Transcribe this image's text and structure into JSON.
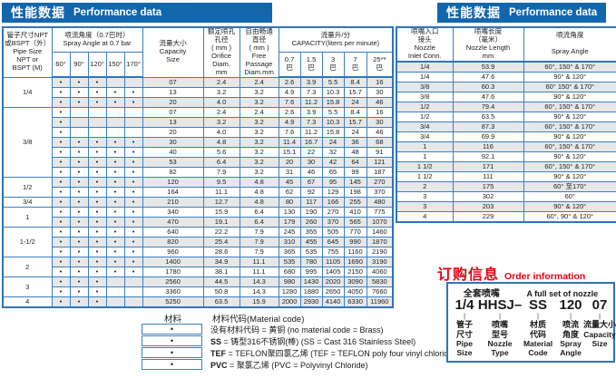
{
  "colors": {
    "title_bar": "#1266ab",
    "table_border": "#2e75b6",
    "grid_line": "#3c7fc0",
    "stripe": "#e7e7e7",
    "accent_red": "#e60012"
  },
  "left": {
    "title_zh": "性能数据",
    "title_en": "Performance data",
    "headers": {
      "pipe": "管子尺寸NPT\n或BSPT（外）\nPipe Size\nNPT or\nBSPT (M)",
      "angle_group": "喷流角度（0.7巴时）\nSpray Angle at 0.7 bar",
      "angles": [
        "60°",
        "90°",
        "120°",
        "150°",
        "170°"
      ],
      "size": "流量大小\nCapacity\nSize",
      "orifice": "额定喷孔\n孔径\n( mm )\nOrifice\nDiam.\nmm",
      "free": "自由畅通\n直径\n( mm )\nFree\nPassage\nDiam.mm",
      "cap_group": "流量升/分\nCAPACITY(liters per minute)",
      "pressures": [
        "0.7\n巴",
        "1.5\n巴",
        "3\n巴",
        "7\n巴",
        "25**\n巴"
      ]
    },
    "groups": [
      {
        "pipe": "1/4",
        "rows": [
          {
            "dots": [
              1,
              1,
              1,
              0,
              0
            ],
            "size": "07",
            "orifice": "2.4",
            "free": "2.4",
            "caps": [
              "2.6",
              "3.9",
              "5.5",
              "8.4",
              "16"
            ]
          },
          {
            "dots": [
              1,
              1,
              1,
              1,
              1
            ],
            "size": "13",
            "orifice": "3.2",
            "free": "3.2",
            "caps": [
              "4.9",
              "7.3",
              "10.3",
              "15.7",
              "30"
            ]
          },
          {
            "dots": [
              1,
              1,
              1,
              1,
              1
            ],
            "size": "20",
            "orifice": "4.0",
            "free": "3.2",
            "caps": [
              "7.6",
              "11.2",
              "15.8",
              "24",
              "46"
            ]
          }
        ]
      },
      {
        "pipe": "3/8",
        "rows": [
          {
            "dots": [
              1,
              0,
              0,
              0,
              0
            ],
            "size": "07",
            "orifice": "2.4",
            "free": "2.4",
            "caps": [
              "2.6",
              "3.9",
              "5.5",
              "8.4",
              "16"
            ]
          },
          {
            "dots": [
              1,
              0,
              0,
              0,
              0
            ],
            "size": "13",
            "orifice": "3.2",
            "free": "3.2",
            "caps": [
              "4.9",
              "7.3",
              "10.3",
              "15.7",
              "30"
            ]
          },
          {
            "dots": [
              1,
              0,
              0,
              0,
              0
            ],
            "size": "20",
            "orifice": "4.0",
            "free": "3.2",
            "caps": [
              "7.6",
              "11.2",
              "15.8",
              "24",
              "46"
            ]
          },
          {
            "dots": [
              1,
              1,
              1,
              1,
              1
            ],
            "size": "30",
            "orifice": "4.8",
            "free": "3.2",
            "caps": [
              "11.4",
              "16.7",
              "24",
              "36",
              "68"
            ]
          },
          {
            "dots": [
              1,
              1,
              1,
              1,
              1
            ],
            "size": "40",
            "orifice": "5.6",
            "free": "3.2",
            "caps": [
              "15.1",
              "22",
              "32",
              "48",
              "91"
            ]
          },
          {
            "dots": [
              1,
              1,
              1,
              1,
              1
            ],
            "size": "53",
            "orifice": "6.4",
            "free": "3.2",
            "caps": [
              "20",
              "30",
              "42",
              "64",
              "121"
            ]
          },
          {
            "dots": [
              1,
              1,
              1,
              1,
              1
            ],
            "size": "82",
            "orifice": "7.9",
            "free": "3.2",
            "caps": [
              "31",
              "46",
              "65",
              "99",
              "187"
            ]
          }
        ]
      },
      {
        "pipe": "1/2",
        "rows": [
          {
            "dots": [
              1,
              1,
              1,
              1,
              1
            ],
            "size": "120",
            "orifice": "9.5",
            "free": "4.8",
            "caps": [
              "45",
              "67",
              "95",
              "145",
              "270"
            ]
          },
          {
            "dots": [
              1,
              1,
              1,
              1,
              1
            ],
            "size": "164",
            "orifice": "11.1",
            "free": "4.8",
            "caps": [
              "62",
              "92",
              "129",
              "198",
              "370"
            ]
          }
        ]
      },
      {
        "pipe": "3/4",
        "rows": [
          {
            "dots": [
              1,
              1,
              1,
              1,
              1
            ],
            "size": "210",
            "orifice": "12.7",
            "free": "4.8",
            "caps": [
              "80",
              "117",
              "166",
              "255",
              "480"
            ]
          }
        ]
      },
      {
        "pipe": "1",
        "rows": [
          {
            "dots": [
              1,
              1,
              1,
              1,
              1
            ],
            "size": "340",
            "orifice": "15.9",
            "free": "6.4",
            "caps": [
              "130",
              "190",
              "270",
              "410",
              "775"
            ]
          },
          {
            "dots": [
              1,
              1,
              1,
              1,
              1
            ],
            "size": "470",
            "orifice": "19.1",
            "free": "6.4",
            "caps": [
              "179",
              "260",
              "370",
              "565",
              "1070"
            ]
          }
        ]
      },
      {
        "pipe": "1-1/2",
        "rows": [
          {
            "dots": [
              1,
              1,
              1,
              1,
              1
            ],
            "size": "640",
            "orifice": "22.2",
            "free": "7.9",
            "caps": [
              "245",
              "355",
              "505",
              "770",
              "1460"
            ]
          },
          {
            "dots": [
              1,
              1,
              1,
              1,
              1
            ],
            "size": "820",
            "orifice": "25.4",
            "free": "7.9",
            "caps": [
              "310",
              "455",
              "645",
              "990",
              "1870"
            ]
          },
          {
            "dots": [
              1,
              1,
              1,
              1,
              1
            ],
            "size": "960",
            "orifice": "28.6",
            "free": "7.9",
            "caps": [
              "365",
              "535",
              "755",
              "1160",
              "2190"
            ]
          }
        ]
      },
      {
        "pipe": "2",
        "rows": [
          {
            "dots": [
              1,
              1,
              1,
              1,
              1
            ],
            "size": "1400",
            "orifice": "34.9",
            "free": "11.1",
            "caps": [
              "535",
              "780",
              "1105",
              "1690",
              "3190"
            ]
          },
          {
            "dots": [
              1,
              1,
              1,
              1,
              1
            ],
            "size": "1780",
            "orifice": "38.1",
            "free": "11.1",
            "caps": [
              "680",
              "995",
              "1405",
              "2150",
              "4060"
            ]
          }
        ]
      },
      {
        "pipe": "3",
        "rows": [
          {
            "dots": [
              1,
              1,
              1,
              0,
              0
            ],
            "size": "2560",
            "orifice": "44.5",
            "free": "14.3",
            "caps": [
              "980",
              "1430",
              "2020",
              "3090",
              "5830"
            ]
          },
          {
            "dots": [
              1,
              1,
              1,
              0,
              0
            ],
            "size": "3360",
            "orifice": "50.8",
            "free": "14.3",
            "caps": [
              "1280",
              "1880",
              "2650",
              "4050",
              "7660"
            ]
          }
        ]
      },
      {
        "pipe": "4",
        "rows": [
          {
            "dots": [
              1,
              1,
              1,
              0,
              0
            ],
            "size": "5250",
            "orifice": "63.5",
            "free": "15.9",
            "caps": [
              "2000",
              "2930",
              "4140",
              "6330",
              "11960"
            ]
          }
        ]
      }
    ]
  },
  "material": {
    "col_label": "材料",
    "title": "材料代码(Material code)",
    "bullet": "•",
    "rows": [
      {
        "code": "",
        "text": "没有材料代码 = 黄铜  (no material code = Brass)"
      },
      {
        "code": "SS",
        "text": " = 铸型316不锈钢(棒) (SS = Cast 316 Stainless Steel)"
      },
      {
        "code": "TEF",
        "text": " = TEFLON聚四氯乙烯 (TEF = TEFLON poly four vinyl chloride)"
      },
      {
        "code": "PVC",
        "text": " = 聚氯乙烯 (PVC = Polyvinyl Chloride)"
      }
    ]
  },
  "right": {
    "title_zh": "性能数据",
    "title_en": "Performance data",
    "headers": {
      "inlet": "喷嘴入口\n接头\nNozzle\nInlet Conn.",
      "length": "喷嘴长度\n（毫米）\nNozzle Length\nmm",
      "angle": "喷流角度\n\nSpray Angle"
    },
    "rows": [
      {
        "inlet": "1/4",
        "length": "53.9",
        "angle": "60°, 150° & 170°"
      },
      {
        "inlet": "1/4",
        "length": "47.6",
        "angle": "90° & 120°"
      },
      {
        "inlet": "3/8",
        "length": "60.3",
        "angle": "60° 150° & 170°"
      },
      {
        "inlet": "3/8",
        "length": "47.6",
        "angle": "90° & 120°"
      },
      {
        "inlet": "1/2",
        "length": "79.4",
        "angle": "60°, 150° & 170°"
      },
      {
        "inlet": "1/2",
        "length": "63.5",
        "angle": "90° & 120°"
      },
      {
        "inlet": "3/4",
        "length": "87.3",
        "angle": "60°, 150° & 170°"
      },
      {
        "inlet": "3/4",
        "length": "69.9",
        "angle": "90° & 120°"
      },
      {
        "inlet": "1",
        "length": "116",
        "angle": "60°, 150° & 170°"
      },
      {
        "inlet": "1",
        "length": "92.1",
        "angle": "90° & 120°"
      },
      {
        "inlet": "1 1/2",
        "length": "171",
        "angle": "60°, 150° & 170°"
      },
      {
        "inlet": "1 1/2",
        "length": "111",
        "angle": "90° & 120°"
      },
      {
        "inlet": "2",
        "length": "175",
        "angle": "60° 至170°"
      },
      {
        "inlet": "3",
        "length": "302",
        "angle": "60°"
      },
      {
        "inlet": "3",
        "length": "203",
        "angle": "90° & 120°"
      },
      {
        "inlet": "4",
        "length": "229",
        "angle": "60°, 90° & 120°"
      }
    ]
  },
  "order": {
    "title_zh": "订购信息",
    "title_en": "Order information",
    "set_zh": "全套喷嘴",
    "set_en": "A full set of nozzle",
    "tick": "|",
    "parts": [
      {
        "code": "1/4",
        "zh": [
          "管子",
          "尺寸"
        ],
        "en": [
          "Pipe",
          "Size"
        ]
      },
      {
        "code": "HHSJ–",
        "zh": [
          "喷嘴",
          "型号"
        ],
        "en": [
          "Nozzle",
          "Type"
        ]
      },
      {
        "code": "SS",
        "zh": [
          "材质",
          "代码"
        ],
        "en": [
          "Material",
          "Code"
        ]
      },
      {
        "code": "120",
        "zh": [
          "喷流",
          "角度"
        ],
        "en": [
          "Spray",
          "Angle"
        ]
      },
      {
        "code": "07",
        "zh": [
          "流量大小"
        ],
        "en": [
          "Capacity",
          "Size"
        ]
      }
    ]
  }
}
